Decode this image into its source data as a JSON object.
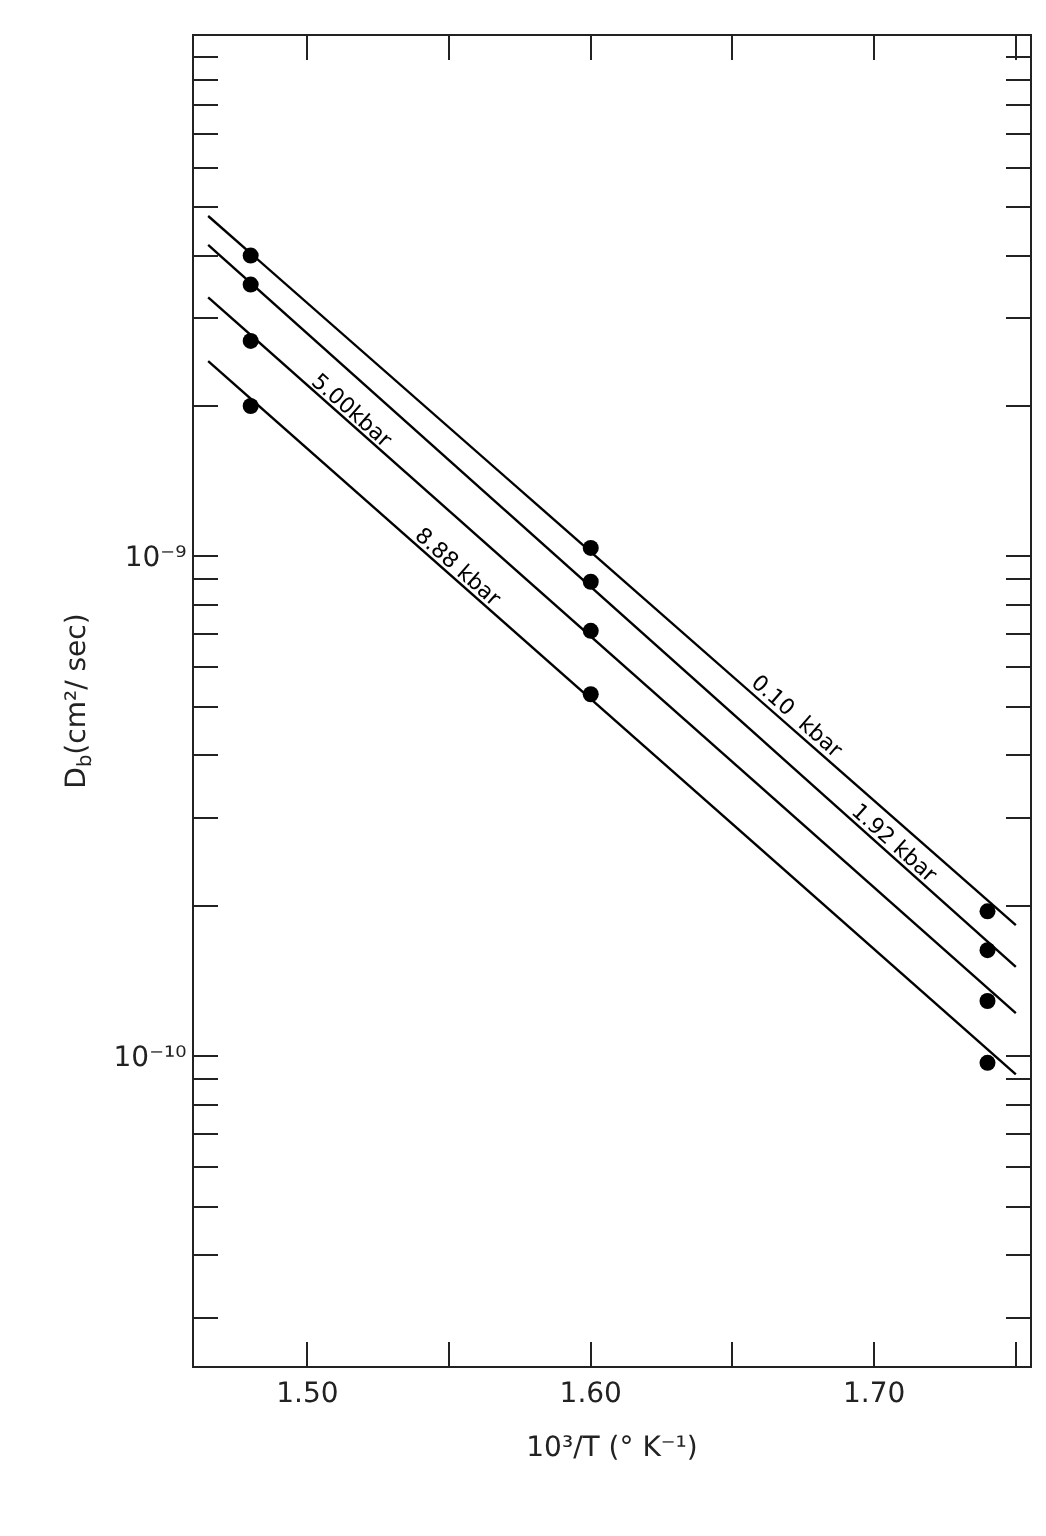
{
  "chart_data": {
    "type": "scatter",
    "xlabel": "10³/T (° K⁻¹)",
    "ylabel": "D$_{b}$(cm²/ sec)",
    "log": "y",
    "grid": false,
    "legend": false,
    "marker": "circle",
    "xlim": [
      1.46,
      1.755
    ],
    "xticks": [
      {
        "value": 1.5,
        "label": "1.50"
      },
      {
        "value": 1.55,
        "label": null
      },
      {
        "value": 1.6,
        "label": "1.60"
      },
      {
        "value": 1.65,
        "label": null
      },
      {
        "value": 1.7,
        "label": "1.70"
      },
      {
        "value": 1.75,
        "label": null
      }
    ],
    "ylim": [
      2.4e-11,
      1.1e-08
    ],
    "yticks": [
      {
        "value": 3e-11,
        "label": null
      },
      {
        "value": 4e-11,
        "label": null
      },
      {
        "value": 5e-11,
        "label": null
      },
      {
        "value": 6e-11,
        "label": null
      },
      {
        "value": 7e-11,
        "label": null
      },
      {
        "value": 8e-11,
        "label": null
      },
      {
        "value": 9e-11,
        "label": null
      },
      {
        "value": 1e-10,
        "label": "10⁻¹⁰"
      },
      {
        "value": 2e-10,
        "label": null
      },
      {
        "value": 3e-10,
        "label": null
      },
      {
        "value": 4e-10,
        "label": null
      },
      {
        "value": 5e-10,
        "label": null
      },
      {
        "value": 6e-10,
        "label": null
      },
      {
        "value": 7e-10,
        "label": null
      },
      {
        "value": 8e-10,
        "label": null
      },
      {
        "value": 9e-10,
        "label": null
      },
      {
        "value": 1e-09,
        "label": "10⁻⁹"
      },
      {
        "value": 2e-09,
        "label": null
      },
      {
        "value": 3e-09,
        "label": null
      },
      {
        "value": 4e-09,
        "label": null
      },
      {
        "value": 5e-09,
        "label": null
      },
      {
        "value": 6e-09,
        "label": null
      },
      {
        "value": 7e-09,
        "label": null
      },
      {
        "value": 8e-09,
        "label": null
      },
      {
        "value": 9e-09,
        "label": null
      },
      {
        "value": 1e-08,
        "label": null
      }
    ],
    "series": [
      {
        "color": "#000000",
        "x": [
          1.48,
          1.6,
          1.74
        ],
        "values": [
          4e-09,
          1.04e-09,
          1.95e-10
        ]
      },
      {
        "color": "#000000",
        "x": [
          1.48,
          1.6,
          1.74
        ],
        "values": [
          3.5e-09,
          8.9e-10,
          1.63e-10
        ]
      },
      {
        "color": "#000000",
        "x": [
          1.48,
          1.6,
          1.74
        ],
        "values": [
          2.7e-09,
          7.1e-10,
          1.29e-10
        ]
      },
      {
        "color": "#000000",
        "x": [
          1.48,
          1.6,
          1.74
        ],
        "values": [
          2e-09,
          5.3e-10,
          9.7e-11
        ]
      },
      {
        "type": "line",
        "name": "0.10  kbar",
        "color": "#000000",
        "marker": "none",
        "line_style": "solid",
        "x": [
          1.465,
          1.75
        ],
        "values": [
          4.8e-09,
          1.83e-10
        ]
      },
      {
        "type": "line",
        "name": "1.92 kbar",
        "color": "#000000",
        "marker": "none",
        "line_style": "solid",
        "x": [
          1.465,
          1.75
        ],
        "values": [
          4.2e-09,
          1.51e-10
        ]
      },
      {
        "type": "line",
        "name": "5.00kbar",
        "color": "#000000",
        "marker": "none",
        "line_style": "solid",
        "x": [
          1.465,
          1.75
        ],
        "values": [
          3.3e-09,
          1.22e-10
        ]
      },
      {
        "type": "line",
        "name": "8.88 kbar",
        "color": "#000000",
        "marker": "none",
        "line_style": "solid",
        "x": [
          1.465,
          1.75
        ],
        "values": [
          2.46e-09,
          9.2e-11
        ]
      }
    ]
  }
}
